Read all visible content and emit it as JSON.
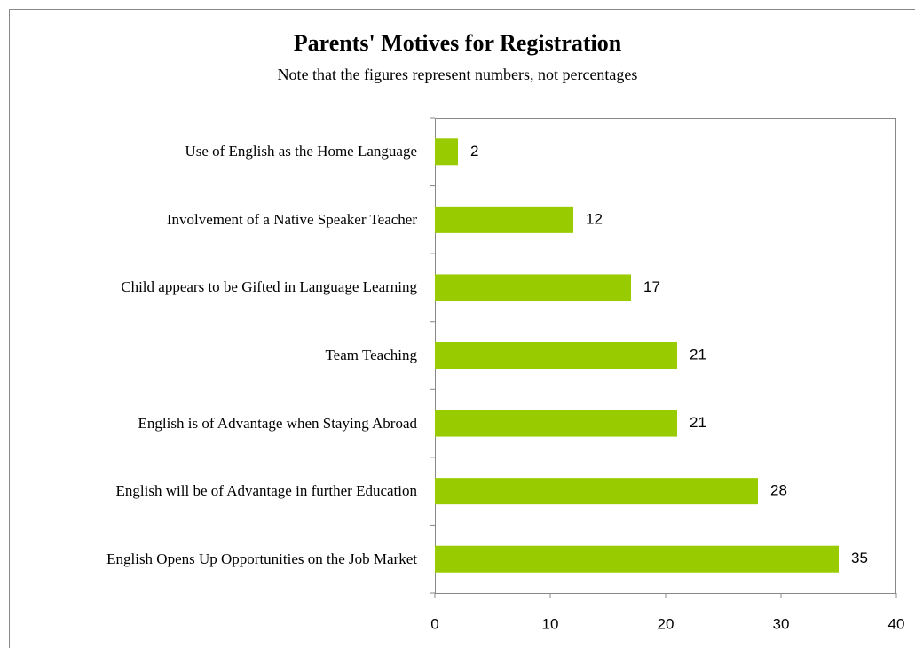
{
  "chart_data": {
    "type": "bar",
    "orientation": "horizontal",
    "title": "Parents' Motives for Registration",
    "subtitle": "Note that the figures represent numbers, not percentages",
    "categories": [
      "Use of English as the Home Language",
      "Involvement of a Native Speaker Teacher",
      "Child appears to be Gifted in Language Learning",
      "Team Teaching",
      "English is of Advantage when Staying Abroad",
      "English will be of Advantage in further Education",
      "English Opens Up Opportunities on the Job Market"
    ],
    "values": [
      2,
      12,
      17,
      21,
      21,
      28,
      35
    ],
    "color": "#99cc00",
    "xlim": [
      0,
      40
    ],
    "xticks": [
      0,
      10,
      20,
      30,
      40
    ]
  }
}
